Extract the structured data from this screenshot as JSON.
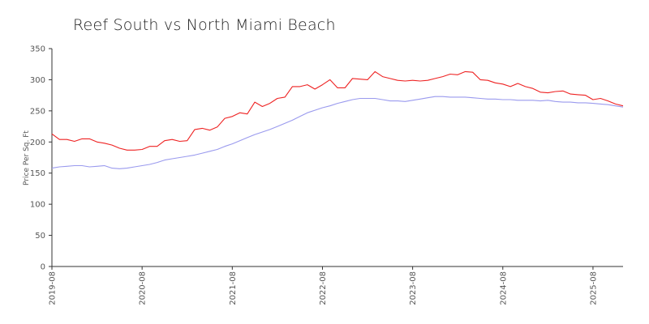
{
  "chart_data": {
    "type": "line",
    "title": "Reef South vs North Miami Beach",
    "xlabel": "",
    "ylabel": "Price Per Sq. Ft",
    "ylim": [
      0,
      350
    ],
    "yticks": [
      0,
      50,
      100,
      150,
      200,
      250,
      300,
      350
    ],
    "xlim": [
      "2019-08",
      "2025-12"
    ],
    "xticks": [
      "2019-08",
      "2020-08",
      "2021-08",
      "2022-08",
      "2023-08",
      "2024-08",
      "2025-08"
    ],
    "grid": false,
    "legend": "none",
    "x": [
      "2019-08",
      "2019-09",
      "2019-10",
      "2019-11",
      "2019-12",
      "2020-01",
      "2020-02",
      "2020-03",
      "2020-04",
      "2020-05",
      "2020-06",
      "2020-07",
      "2020-08",
      "2020-09",
      "2020-10",
      "2020-11",
      "2020-12",
      "2021-01",
      "2021-02",
      "2021-03",
      "2021-04",
      "2021-05",
      "2021-06",
      "2021-07",
      "2021-08",
      "2021-09",
      "2021-10",
      "2021-11",
      "2021-12",
      "2022-01",
      "2022-02",
      "2022-03",
      "2022-04",
      "2022-05",
      "2022-06",
      "2022-07",
      "2022-08",
      "2022-09",
      "2022-10",
      "2022-11",
      "2022-12",
      "2023-01",
      "2023-02",
      "2023-03",
      "2023-04",
      "2023-05",
      "2023-06",
      "2023-07",
      "2023-08",
      "2023-09",
      "2023-10",
      "2023-11",
      "2023-12",
      "2024-01",
      "2024-02",
      "2024-03",
      "2024-04",
      "2024-05",
      "2024-06",
      "2024-07",
      "2024-08",
      "2024-09",
      "2024-10",
      "2024-11",
      "2024-12",
      "2025-01",
      "2025-02",
      "2025-03",
      "2025-04",
      "2025-05",
      "2025-06",
      "2025-07",
      "2025-08",
      "2025-09",
      "2025-10",
      "2025-11",
      "2025-12"
    ],
    "series": [
      {
        "color": "#ee2222",
        "values": [
          213,
          204,
          204,
          201,
          205,
          205,
          200,
          198,
          195,
          190,
          187,
          187,
          188,
          193,
          193,
          202,
          204,
          201,
          202,
          220,
          222,
          219,
          224,
          238,
          241,
          247,
          245,
          264,
          257,
          262,
          270,
          272,
          289,
          289,
          292,
          285,
          292,
          300,
          287,
          287,
          302,
          301,
          300,
          313,
          305,
          302,
          299,
          298,
          299,
          298,
          299,
          302,
          305,
          309,
          308,
          313,
          312,
          300,
          299,
          295,
          293,
          289,
          294,
          289,
          286,
          280,
          279,
          281,
          282,
          277,
          276,
          275,
          268,
          270,
          266,
          261,
          258
        ]
      },
      {
        "color": "#9a9aee",
        "values": [
          158,
          160,
          161,
          162,
          162,
          160,
          161,
          162,
          158,
          157,
          158,
          160,
          162,
          164,
          167,
          171,
          173,
          175,
          177,
          179,
          182,
          185,
          188,
          193,
          197,
          202,
          207,
          212,
          216,
          220,
          225,
          230,
          235,
          241,
          247,
          251,
          255,
          258,
          262,
          265,
          268,
          270,
          270,
          270,
          268,
          266,
          266,
          265,
          267,
          269,
          271,
          273,
          273,
          272,
          272,
          272,
          271,
          270,
          269,
          269,
          268,
          268,
          267,
          267,
          267,
          266,
          267,
          265,
          264,
          264,
          263,
          263,
          262,
          261,
          260,
          258,
          256
        ]
      }
    ]
  }
}
